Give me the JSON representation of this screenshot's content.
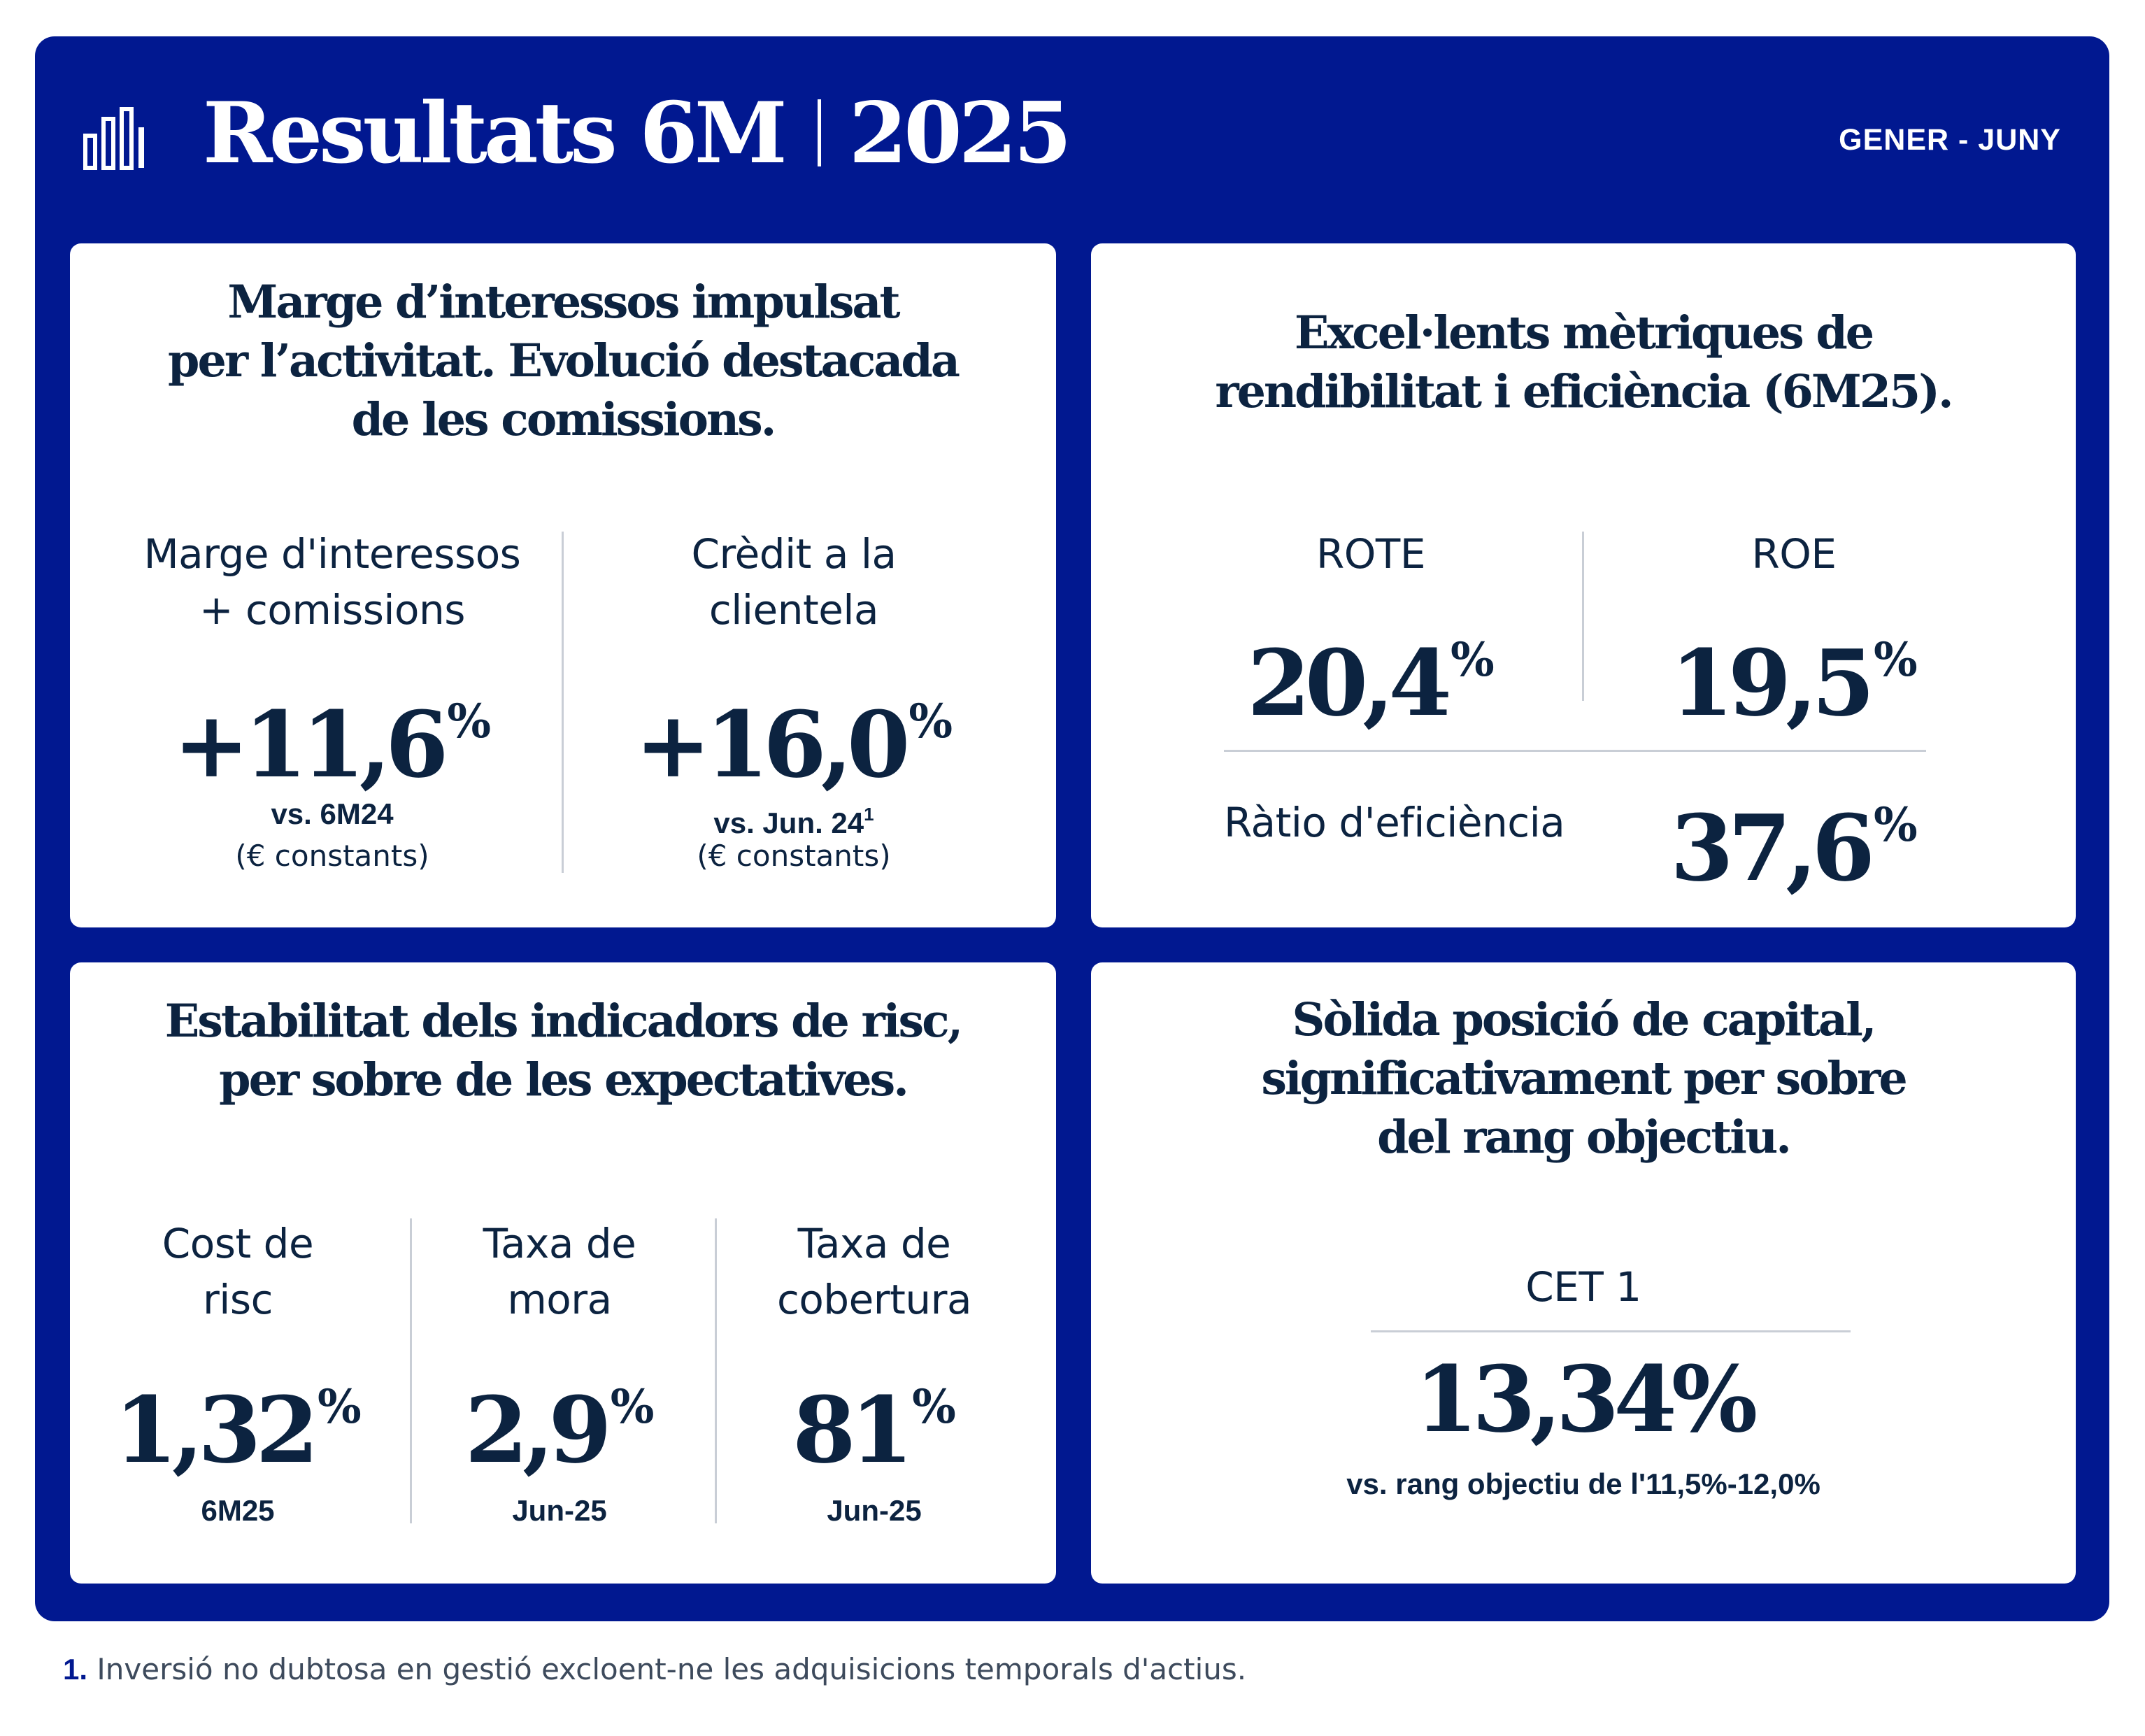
{
  "header": {
    "title_main": "Resultats 6M",
    "title_year": "2025",
    "period": "GENER - JUNY",
    "logo_icon": "bar-chart-icon"
  },
  "colors": {
    "frame": "#011890",
    "text": "#0c2340",
    "divider": "#c9ced6",
    "card": "#ffffff"
  },
  "card_margin": {
    "title": "Marge d’interessos impulsat\nper l’activitat. Evolució destacada\nde les comissions.",
    "m1": {
      "label": "Marge d'interessos\n+ comissions",
      "value": "+11,6",
      "unit": "%",
      "note": "vs. 6M24",
      "note_sub": "(€ constants)"
    },
    "m2": {
      "label": "Crèdit a la\nclientela",
      "value": "+16,0",
      "unit": "%",
      "note": "vs. Jun. 24",
      "note_sup": "1",
      "note_sub": "(€ constants)"
    }
  },
  "card_metrics": {
    "title": "Excel·lents mètriques de\nrendibilitat i eficiència (6M25).",
    "rote": {
      "label": "ROTE",
      "value": "20,4",
      "unit": "%"
    },
    "roe": {
      "label": "ROE",
      "value": "19,5",
      "unit": "%"
    },
    "efficiency": {
      "label": "Ràtio d'eficiència",
      "value": "37,6",
      "unit": "%"
    }
  },
  "card_risk": {
    "title": "Estabilitat dels indicadors de risc,\nper sobre de les expectatives.",
    "r1": {
      "label": "Cost de\nrisc",
      "value": "1,32",
      "unit": "%",
      "note": "6M25"
    },
    "r2": {
      "label": "Taxa de\nmora",
      "value": "2,9",
      "unit": "%",
      "note": "Jun-25"
    },
    "r3": {
      "label": "Taxa de\ncobertura",
      "value": "81",
      "unit": "%",
      "note": "Jun-25"
    }
  },
  "card_capital": {
    "title": "Sòlida posició de capital,\nsignificativament per sobre\ndel rang objectiu.",
    "label": "CET 1",
    "value": "13,34%",
    "note": "vs. rang objectiu de l'11,5%-12,0%"
  },
  "footnote": {
    "number": "1.",
    "text": "Inversió no dubtosa en gestió excloent-ne les adquisicions temporals d'actius."
  }
}
